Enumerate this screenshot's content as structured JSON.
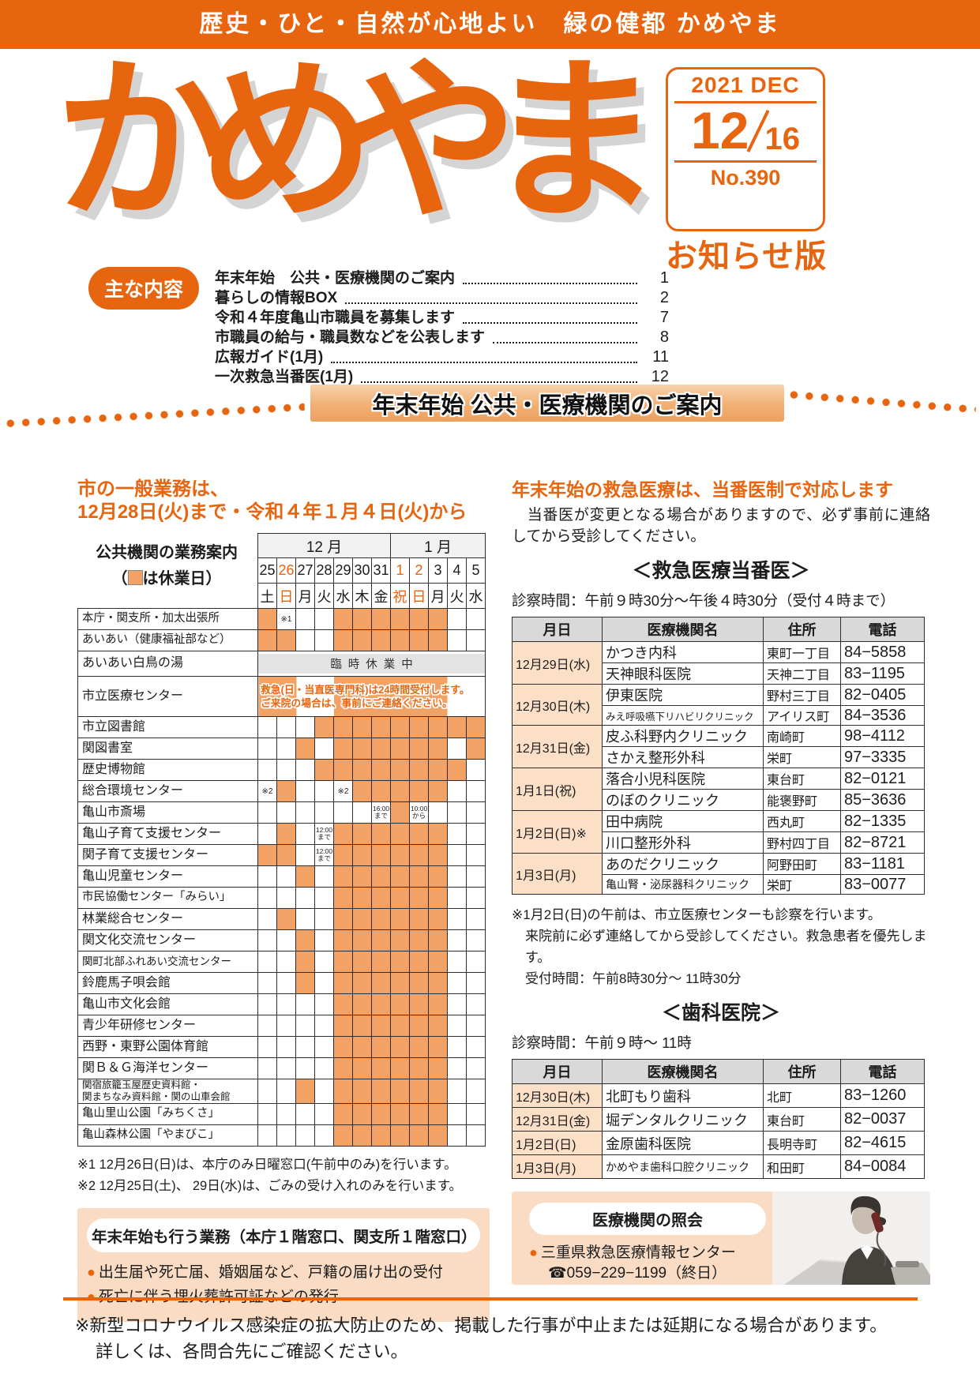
{
  "topbar": {
    "slogan": "歴史・ひと・自然が心地よい　緑の健都 かめやま"
  },
  "masthead": {
    "title": "かめやま",
    "date_en": "2021 DEC",
    "issue_month": "12",
    "issue_day": "16",
    "issue_no": "No.390",
    "edition": "お知らせ版"
  },
  "toc": {
    "label": "主な内容",
    "items": [
      {
        "label": "年末年始　公共・医療機関のご案内",
        "page": "1"
      },
      {
        "label": "暮らしの情報BOX",
        "page": "2"
      },
      {
        "label": "令和４年度亀山市職員を募集します",
        "page": "7"
      },
      {
        "label": "市職員の給与・職員数などを公表します",
        "page": "8"
      },
      {
        "label": "広報ガイド(1月)",
        "page": "11"
      },
      {
        "label": "一次救急当番医(1月)",
        "page": "12"
      }
    ]
  },
  "banner": {
    "title": "年末年始 公共・医療機関のご案内"
  },
  "left": {
    "heading_line1": "市の一般業務は、",
    "heading_line2": "12月28日(火)まで・令和４年１月４日(火)から",
    "calendar": {
      "label_line1": "公共機関の業務案内",
      "label_line2_pre": "（",
      "label_line2_post": "は休業日）",
      "months": [
        {
          "label": "12 月",
          "span": 7
        },
        {
          "label": "1 月",
          "span": 5
        }
      ],
      "dates": [
        {
          "t": "25",
          "hl": false
        },
        {
          "t": "26",
          "hl": true
        },
        {
          "t": "27",
          "hl": false
        },
        {
          "t": "28",
          "hl": false
        },
        {
          "t": "29",
          "hl": false
        },
        {
          "t": "30",
          "hl": false
        },
        {
          "t": "31",
          "hl": false
        },
        {
          "t": "1",
          "hl": true
        },
        {
          "t": "2",
          "hl": true
        },
        {
          "t": "3",
          "hl": false
        },
        {
          "t": "4",
          "hl": false
        },
        {
          "t": "5",
          "hl": false
        }
      ],
      "days": [
        {
          "t": "土",
          "hl": false
        },
        {
          "t": "日",
          "hl": true
        },
        {
          "t": "月",
          "hl": false
        },
        {
          "t": "火",
          "hl": false
        },
        {
          "t": "水",
          "hl": false
        },
        {
          "t": "木",
          "hl": false
        },
        {
          "t": "金",
          "hl": false
        },
        {
          "t": "祝",
          "hl": true
        },
        {
          "t": "日",
          "hl": true
        },
        {
          "t": "月",
          "hl": false
        },
        {
          "t": "火",
          "hl": false
        },
        {
          "t": "水",
          "hl": false
        }
      ],
      "rows": [
        {
          "name": "本庁・関支所・加太出張所",
          "cells": [
            "o",
            "※1",
            "",
            "",
            "o",
            "o",
            "o",
            "o",
            "o",
            "o",
            "",
            ""
          ]
        },
        {
          "name": "あいあい（健康福祉部など）",
          "cells": [
            "o",
            "o",
            "",
            "",
            "o",
            "o",
            "o",
            "o",
            "o",
            "o",
            "",
            ""
          ]
        },
        {
          "name": "あいあい白鳥の湯",
          "type": "band",
          "text": "臨時休業中"
        },
        {
          "name": "市立医療センター",
          "type": "note",
          "text_line1": "救急(日・当直医専門科)は24時間受付します。",
          "text_line2": "ご来院の場合は、事前にご連絡ください。"
        },
        {
          "name": "市立図書館",
          "cells": [
            "",
            "",
            "",
            "o",
            "o",
            "o",
            "o",
            "o",
            "o",
            "o",
            "o",
            "o"
          ]
        },
        {
          "name": "関図書室",
          "cells": [
            "",
            "",
            "o",
            "",
            "o",
            "o",
            "o",
            "o",
            "o",
            "o",
            "",
            "o"
          ]
        },
        {
          "name": "歴史博物館",
          "cells": [
            "",
            "",
            "",
            "o",
            "o",
            "o",
            "o",
            "o",
            "o",
            "o",
            "o",
            ""
          ]
        },
        {
          "name": "総合環境センター",
          "cells": [
            "※2",
            "o",
            "",
            "",
            "※2",
            "o",
            "o",
            "o",
            "o",
            "o",
            "",
            ""
          ]
        },
        {
          "name": "亀山市斎場",
          "cells": [
            "",
            "",
            "",
            "",
            "",
            "",
            "16:00|まで",
            "o",
            "10:00|から",
            "",
            "",
            ""
          ]
        },
        {
          "name": "亀山子育て支援センター",
          "cells": [
            "",
            "o",
            "",
            "12:00|まで",
            "o",
            "o",
            "o",
            "o",
            "o",
            "o",
            "",
            ""
          ]
        },
        {
          "name": "関子育て支援センター",
          "cells": [
            "o",
            "o",
            "",
            "12:00|まで",
            "o",
            "o",
            "o",
            "o",
            "o",
            "o",
            "",
            ""
          ]
        },
        {
          "name": "亀山児童センター",
          "cells": [
            "",
            "",
            "o",
            "",
            "o",
            "o",
            "o",
            "o",
            "o",
            "o",
            "",
            ""
          ]
        },
        {
          "name": "市民協働センター「みらい」",
          "cells": [
            "",
            "",
            "",
            "",
            "o",
            "o",
            "o",
            "o",
            "o",
            "o",
            "",
            ""
          ]
        },
        {
          "name": "林業総合センター",
          "cells": [
            "",
            "o",
            "",
            "",
            "o",
            "o",
            "o",
            "o",
            "o",
            "o",
            "",
            ""
          ]
        },
        {
          "name": "関文化交流センター",
          "cells": [
            "",
            "",
            "o",
            "",
            "o",
            "o",
            "o",
            "o",
            "o",
            "o",
            "",
            ""
          ]
        },
        {
          "name": "関町北部ふれあい交流センター",
          "cells": [
            "",
            "",
            "o",
            "",
            "o",
            "o",
            "o",
            "o",
            "o",
            "o",
            "",
            ""
          ]
        },
        {
          "name": "鈴鹿馬子唄会館",
          "cells": [
            "",
            "",
            "o",
            "",
            "o",
            "o",
            "o",
            "o",
            "o",
            "o",
            "",
            ""
          ]
        },
        {
          "name": "亀山市文化会館",
          "cells": [
            "",
            "",
            "",
            "",
            "o",
            "o",
            "o",
            "o",
            "o",
            "o",
            "",
            ""
          ]
        },
        {
          "name": "青少年研修センター",
          "cells": [
            "",
            "",
            "",
            "",
            "o",
            "o",
            "o",
            "o",
            "o",
            "o",
            "",
            ""
          ]
        },
        {
          "name": "西野・東野公園体育館",
          "cells": [
            "",
            "",
            "",
            "",
            "o",
            "o",
            "o",
            "o",
            "o",
            "o",
            "",
            ""
          ]
        },
        {
          "name": "関Ｂ＆Ｇ海洋センター",
          "cells": [
            "",
            "",
            "",
            "",
            "o",
            "o",
            "o",
            "o",
            "o",
            "o",
            "",
            ""
          ]
        },
        {
          "name": "関宿旅籠玉屋歴史資料館・\n関まちなみ資料館・関の山車会館",
          "cells": [
            "",
            "",
            "o",
            "",
            "o",
            "o",
            "o",
            "o",
            "o",
            "o",
            "",
            ""
          ]
        },
        {
          "name": "亀山里山公園「みちくさ」",
          "cells": [
            "",
            "",
            "",
            "",
            "o",
            "o",
            "o",
            "o",
            "o",
            "o",
            "",
            ""
          ]
        },
        {
          "name": "亀山森林公園「やまびこ」",
          "cells": [
            "",
            "",
            "",
            "",
            "o",
            "o",
            "o",
            "o",
            "o",
            "o",
            "",
            ""
          ]
        }
      ],
      "footnotes": [
        "※1 12月26日(日)は、本庁のみ日曜窓口(午前中のみ)を行います。",
        "※2 12月25日(土)、 29日(水)は、ごみの受け入れのみを行います。"
      ]
    },
    "services_box": {
      "title": "年末年始も行う業務（本庁１階窓口、関支所１階窓口）",
      "bullets": [
        "出生届や死亡届、婚姻届など、戸籍の届け出の受付",
        "死亡に伴う埋火葬許可証などの発行"
      ]
    }
  },
  "right": {
    "heading": "年末年始の救急医療は、当番医制で対応します",
    "para": "　当番医が変更となる場合がありますので、必ず事前に連絡してから受診してください。",
    "emergency": {
      "title": "＜救急医療当番医＞",
      "hours": "診察時間：午前９時30分～午後４時30分（受付４時まで）",
      "headers": [
        "月日",
        "医療機関名",
        "住所",
        "電話"
      ],
      "groups": [
        {
          "date": "12月29日(水)",
          "entries": [
            {
              "name": "かつき内科",
              "addr": "東町一丁目",
              "tel": "84−5858"
            },
            {
              "name": "天神眼科医院",
              "addr": "天神二丁目",
              "tel": "83−1195"
            }
          ]
        },
        {
          "date": "12月30日(木)",
          "entries": [
            {
              "name": "伊東医院",
              "addr": "野村三丁目",
              "tel": "82−0405"
            },
            {
              "name": "みえ呼吸嚥下リハビリクリニック",
              "addr": "アイリス町",
              "tel": "84−3536"
            }
          ]
        },
        {
          "date": "12月31日(金)",
          "entries": [
            {
              "name": "皮ふ科野内クリニック",
              "addr": "南崎町",
              "tel": "98−4112"
            },
            {
              "name": "さかえ整形外科",
              "addr": "栄町",
              "tel": "97−3335"
            }
          ]
        },
        {
          "date": "1月1日(祝)",
          "entries": [
            {
              "name": "落合小児科医院",
              "addr": "東台町",
              "tel": "82−0121"
            },
            {
              "name": "のぼのクリニック",
              "addr": "能褒野町",
              "tel": "85−3636"
            }
          ]
        },
        {
          "date": "1月2日(日)※",
          "entries": [
            {
              "name": "田中病院",
              "addr": "西丸町",
              "tel": "82−1335"
            },
            {
              "name": "川口整形外科",
              "addr": "野村四丁目",
              "tel": "82−8721"
            }
          ]
        },
        {
          "date": "1月3日(月)",
          "entries": [
            {
              "name": "あのだクリニック",
              "addr": "阿野田町",
              "tel": "83−1181"
            },
            {
              "name": "亀山腎・泌尿器科クリニック",
              "addr": "栄町",
              "tel": "83−0077"
            }
          ]
        }
      ],
      "notes": [
        "※1月2日(日)の午前は、市立医療センターも診察を行います。",
        "来院前に必ず連絡してから受診してください。救急患者を優先します。",
        "受付時間：午前8時30分～ 11時30分"
      ]
    },
    "dental": {
      "title": "＜歯科医院＞",
      "hours": "診察時間：午前９時～ 11時",
      "headers": [
        "月日",
        "医療機関名",
        "住所",
        "電話"
      ],
      "rows": [
        {
          "date": "12月30日(木)",
          "name": "北町もり歯科",
          "addr": "北町",
          "tel": "83−1260"
        },
        {
          "date": "12月31日(金)",
          "name": "堀デンタルクリニック",
          "addr": "東台町",
          "tel": "82−0037"
        },
        {
          "date": "1月2日(日)",
          "name": "金原歯科医院",
          "addr": "長明寺町",
          "tel": "82−4615"
        },
        {
          "date": "1月3日(月)",
          "name": "かめやま歯科口腔クリニック",
          "addr": "和田町",
          "tel": "84−0084"
        }
      ]
    },
    "inquiry_box": {
      "title": "医療機関の照会",
      "line1": "三重県救急医療情報センター",
      "line2": "☎059−229−1199（終日）"
    }
  },
  "footer": {
    "line1": "※新型コロナウイルス感染症の拡大防止のため、掲載した行事が中止または延期になる場合があります。",
    "line2": "詳しくは、各問合先にご確認ください。"
  },
  "colors": {
    "accent": "#e8650f",
    "closed_cell": "#f2a264",
    "peach_box": "#f9dcc3",
    "table_header": "#d9d9d9",
    "band_gray": "#e3e3e3"
  }
}
